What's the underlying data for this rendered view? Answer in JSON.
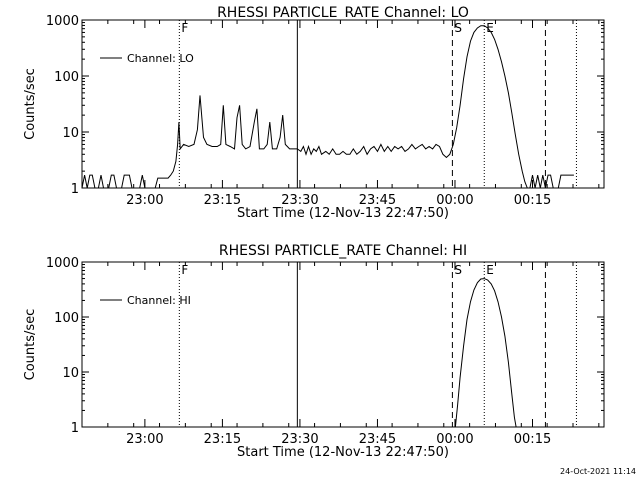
{
  "footer_date": "24-Oct-2021 11:14",
  "chart_data": [
    {
      "type": "line",
      "title": "RHESSI PARTICLE_RATE Channel: LO",
      "xlabel": "Start Time (12-Nov-13 22:47:50)",
      "ylabel": "Counts/sec",
      "yscale": "log",
      "ylim": [
        1,
        1000
      ],
      "xlim": [
        "22:47:50",
        "00:28:50"
      ],
      "x_tick_labels": [
        "23:00",
        "23:15",
        "23:30",
        "23:45",
        "00:00",
        "00:15"
      ],
      "y_tick_labels": [
        "1",
        "10",
        "100",
        "1000"
      ],
      "legend": {
        "entries": [
          "Channel: LO"
        ],
        "placement": "top-left"
      },
      "markers": [
        {
          "time": "23:06:40",
          "label": "F",
          "style": "dotted"
        },
        {
          "time": "23:29:30",
          "label": "",
          "style": "solid"
        },
        {
          "time": "23:59:30",
          "label": "S",
          "style": "dashed"
        },
        {
          "time": "00:05:40",
          "label": "E",
          "style": "dotted"
        },
        {
          "time": "00:17:30",
          "label": "",
          "style": "dashed"
        },
        {
          "time": "00:23:30",
          "label": "",
          "style": "dotted"
        }
      ],
      "series": [
        {
          "name": "Channel: LO",
          "points": [
            [
              "22:47:50",
              1
            ],
            [
              "22:48:20",
              1.7
            ],
            [
              "22:48:50",
              1
            ],
            [
              "22:49:20",
              1.7
            ],
            [
              "22:49:50",
              1.7
            ],
            [
              "22:50:20",
              1
            ],
            [
              "22:51:00",
              1
            ],
            [
              "22:51:30",
              1.7
            ],
            [
              "22:52:00",
              1
            ],
            [
              "22:53:00",
              1
            ],
            [
              "22:53:30",
              1.7
            ],
            [
              "22:54:00",
              1.7
            ],
            [
              "22:54:30",
              1
            ],
            [
              "22:55:30",
              1
            ],
            [
              "22:56:00",
              1.7
            ],
            [
              "22:57:00",
              1.7
            ],
            [
              "22:57:30",
              1
            ],
            [
              "22:59:00",
              1
            ],
            [
              "22:59:30",
              1.7
            ],
            [
              "23:00:00",
              1
            ],
            [
              "23:02:00",
              1
            ],
            [
              "23:02:30",
              1.5
            ],
            [
              "23:03:00",
              1.5
            ],
            [
              "23:03:30",
              1.5
            ],
            [
              "23:04:30",
              1.5
            ],
            [
              "23:05:00",
              1.7
            ],
            [
              "23:05:30",
              2
            ],
            [
              "23:06:00",
              3
            ],
            [
              "23:06:20",
              6
            ],
            [
              "23:06:35",
              15
            ],
            [
              "23:06:50",
              5
            ],
            [
              "23:07:30",
              6
            ],
            [
              "23:08:30",
              5.5
            ],
            [
              "23:09:30",
              6
            ],
            [
              "23:10:10",
              11
            ],
            [
              "23:10:40",
              45
            ],
            [
              "23:11:20",
              8
            ],
            [
              "23:12:00",
              6
            ],
            [
              "23:13:00",
              5.5
            ],
            [
              "23:14:00",
              5.5
            ],
            [
              "23:14:40",
              6
            ],
            [
              "23:15:10",
              30
            ],
            [
              "23:15:40",
              6
            ],
            [
              "23:16:30",
              5.5
            ],
            [
              "23:17:20",
              5
            ],
            [
              "23:17:50",
              18
            ],
            [
              "23:18:20",
              30
            ],
            [
              "23:18:50",
              6
            ],
            [
              "23:19:30",
              5
            ],
            [
              "23:20:20",
              5.5
            ],
            [
              "23:21:10",
              15
            ],
            [
              "23:21:40",
              26
            ],
            [
              "23:22:10",
              5
            ],
            [
              "23:23:00",
              5
            ],
            [
              "23:23:40",
              6
            ],
            [
              "23:24:10",
              15
            ],
            [
              "23:24:40",
              5
            ],
            [
              "23:25:30",
              5
            ],
            [
              "23:26:10",
              8
            ],
            [
              "23:26:40",
              20
            ],
            [
              "23:27:10",
              6
            ],
            [
              "23:28:00",
              5
            ],
            [
              "23:29:30",
              5
            ],
            [
              "23:30:10",
              4.5
            ],
            [
              "23:30:40",
              5.5
            ],
            [
              "23:31:10",
              4
            ],
            [
              "23:31:40",
              5.5
            ],
            [
              "23:32:10",
              4
            ],
            [
              "23:32:40",
              5
            ],
            [
              "23:33:10",
              4.5
            ],
            [
              "23:33:40",
              5.5
            ],
            [
              "23:34:10",
              4
            ],
            [
              "23:35:00",
              4.5
            ],
            [
              "23:35:40",
              4
            ],
            [
              "23:36:20",
              5
            ],
            [
              "23:37:00",
              4
            ],
            [
              "23:37:40",
              4
            ],
            [
              "23:38:20",
              4.5
            ],
            [
              "23:39:00",
              4
            ],
            [
              "23:39:40",
              4
            ],
            [
              "23:40:20",
              5
            ],
            [
              "23:41:00",
              4
            ],
            [
              "23:41:40",
              4.5
            ],
            [
              "23:42:20",
              5.5
            ],
            [
              "23:43:00",
              4
            ],
            [
              "23:43:40",
              5
            ],
            [
              "23:44:20",
              5.5
            ],
            [
              "23:45:00",
              4.5
            ],
            [
              "23:45:40",
              6
            ],
            [
              "23:46:20",
              4.5
            ],
            [
              "23:47:00",
              5.5
            ],
            [
              "23:47:40",
              4.5
            ],
            [
              "23:48:20",
              5.5
            ],
            [
              "23:49:00",
              5
            ],
            [
              "23:49:40",
              5.5
            ],
            [
              "23:50:20",
              4.5
            ],
            [
              "23:51:00",
              5
            ],
            [
              "23:51:40",
              6
            ],
            [
              "23:52:20",
              5
            ],
            [
              "23:53:00",
              5.5
            ],
            [
              "23:53:40",
              6
            ],
            [
              "23:54:20",
              5
            ],
            [
              "23:55:00",
              5.5
            ],
            [
              "23:55:40",
              5
            ],
            [
              "23:56:20",
              6
            ],
            [
              "23:57:00",
              5.5
            ],
            [
              "23:57:40",
              4
            ],
            [
              "23:58:20",
              3.5
            ],
            [
              "23:59:00",
              4
            ],
            [
              "23:59:40",
              6
            ],
            [
              "00:00:20",
              12
            ],
            [
              "00:01:00",
              30
            ],
            [
              "00:01:40",
              90
            ],
            [
              "00:02:20",
              220
            ],
            [
              "00:03:00",
              420
            ],
            [
              "00:03:40",
              600
            ],
            [
              "00:04:20",
              720
            ],
            [
              "00:05:00",
              790
            ],
            [
              "00:05:40",
              790
            ],
            [
              "00:06:20",
              720
            ],
            [
              "00:07:00",
              600
            ],
            [
              "00:07:40",
              450
            ],
            [
              "00:08:20",
              300
            ],
            [
              "00:09:00",
              180
            ],
            [
              "00:09:40",
              100
            ],
            [
              "00:10:20",
              50
            ],
            [
              "00:11:00",
              22
            ],
            [
              "00:11:40",
              9
            ],
            [
              "00:12:20",
              4
            ],
            [
              "00:13:00",
              2
            ],
            [
              "00:13:30",
              1.3
            ],
            [
              "00:14:00",
              1
            ],
            [
              "00:14:30",
              1
            ],
            [
              "00:15:00",
              1.7
            ],
            [
              "00:15:30",
              1
            ],
            [
              "00:16:00",
              1.7
            ],
            [
              "00:16:30",
              1
            ],
            [
              "00:17:00",
              1.7
            ],
            [
              "00:17:30",
              1
            ],
            [
              "00:18:00",
              1.7
            ],
            [
              "00:18:30",
              1.7
            ],
            [
              "00:19:00",
              1
            ],
            [
              "00:20:00",
              1
            ],
            [
              "00:20:30",
              1.7
            ],
            [
              "00:21:00",
              1.7
            ],
            [
              "00:22:00",
              1.7
            ],
            [
              "00:23:00",
              1.7
            ]
          ]
        }
      ]
    },
    {
      "type": "line",
      "title": "RHESSI PARTICLE_RATE Channel: HI",
      "xlabel": "Start Time (12-Nov-13 22:47:50)",
      "ylabel": "Counts/sec",
      "yscale": "log",
      "ylim": [
        1,
        1000
      ],
      "xlim": [
        "22:47:50",
        "00:28:50"
      ],
      "x_tick_labels": [
        "23:00",
        "23:15",
        "23:30",
        "23:45",
        "00:00",
        "00:15"
      ],
      "y_tick_labels": [
        "1",
        "10",
        "100",
        "1000"
      ],
      "legend": {
        "entries": [
          "Channel: HI"
        ],
        "placement": "top-left"
      },
      "markers": [
        {
          "time": "23:06:40",
          "label": "F",
          "style": "dotted"
        },
        {
          "time": "23:29:30",
          "label": "",
          "style": "solid"
        },
        {
          "time": "23:59:30",
          "label": "S",
          "style": "dashed"
        },
        {
          "time": "00:05:40",
          "label": "E",
          "style": "dotted"
        },
        {
          "time": "00:17:30",
          "label": "",
          "style": "dashed"
        },
        {
          "time": "00:23:30",
          "label": "",
          "style": "dotted"
        }
      ],
      "series": [
        {
          "name": "Channel: HI",
          "points": [
            [
              "00:00:05",
              1
            ],
            [
              "00:00:30",
              2.5
            ],
            [
              "00:01:00",
              8
            ],
            [
              "00:01:40",
              30
            ],
            [
              "00:02:20",
              90
            ],
            [
              "00:03:00",
              190
            ],
            [
              "00:03:40",
              310
            ],
            [
              "00:04:20",
              420
            ],
            [
              "00:05:00",
              490
            ],
            [
              "00:05:40",
              500
            ],
            [
              "00:06:20",
              470
            ],
            [
              "00:07:00",
              400
            ],
            [
              "00:07:40",
              300
            ],
            [
              "00:08:20",
              190
            ],
            [
              "00:09:00",
              100
            ],
            [
              "00:09:40",
              45
            ],
            [
              "00:10:20",
              15
            ],
            [
              "00:11:00",
              4
            ],
            [
              "00:11:30",
              1.5
            ],
            [
              "00:11:50",
              1
            ]
          ]
        }
      ]
    }
  ]
}
